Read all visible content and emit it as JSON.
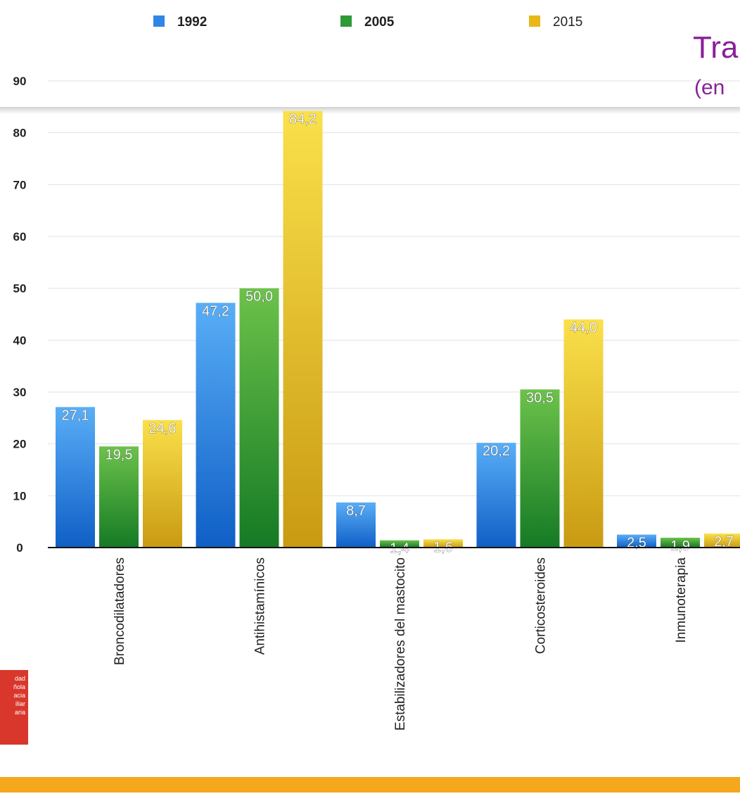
{
  "title_partial": "Tra",
  "subtitle_partial": "(en",
  "logo_lines": [
    "dad",
    "ñola",
    "acia",
    "iliar",
    "aria"
  ],
  "colors": {
    "series_1992": "#2f86e6",
    "series_2005": "#2e9a36",
    "series_2015": "#e8b81a",
    "title": "#8a1f9a",
    "bottom_bar": "#f5a81c",
    "logo": "#d9372c"
  },
  "chart_data": {
    "type": "bar",
    "categories": [
      "Broncodilatadores",
      "Antihistamínicos",
      "Estabilizadores del mastocito",
      "Corticosteroides",
      "Inmunoterapia"
    ],
    "series": [
      {
        "name": "1992",
        "values": [
          27.1,
          47.2,
          8.7,
          20.2,
          2.5
        ],
        "labels": [
          "27,1",
          "47,2",
          "8,7",
          "20,2",
          "2,5"
        ]
      },
      {
        "name": "2005",
        "values": [
          19.5,
          50.0,
          1.4,
          30.5,
          1.9
        ],
        "labels": [
          "19,5",
          "50,0",
          "1,4",
          "30,5",
          "1,9"
        ]
      },
      {
        "name": "2015",
        "values": [
          24.6,
          84.2,
          1.6,
          44.0,
          2.7
        ],
        "labels": [
          "24,6",
          "84,2",
          "1,6",
          "44,0",
          "2,7"
        ]
      }
    ],
    "yticks": [
      0,
      10,
      20,
      30,
      40,
      50,
      60,
      70,
      80,
      90
    ],
    "ylim": [
      0,
      90
    ],
    "grid": true,
    "legend": "top",
    "xlabel": "",
    "ylabel": ""
  }
}
